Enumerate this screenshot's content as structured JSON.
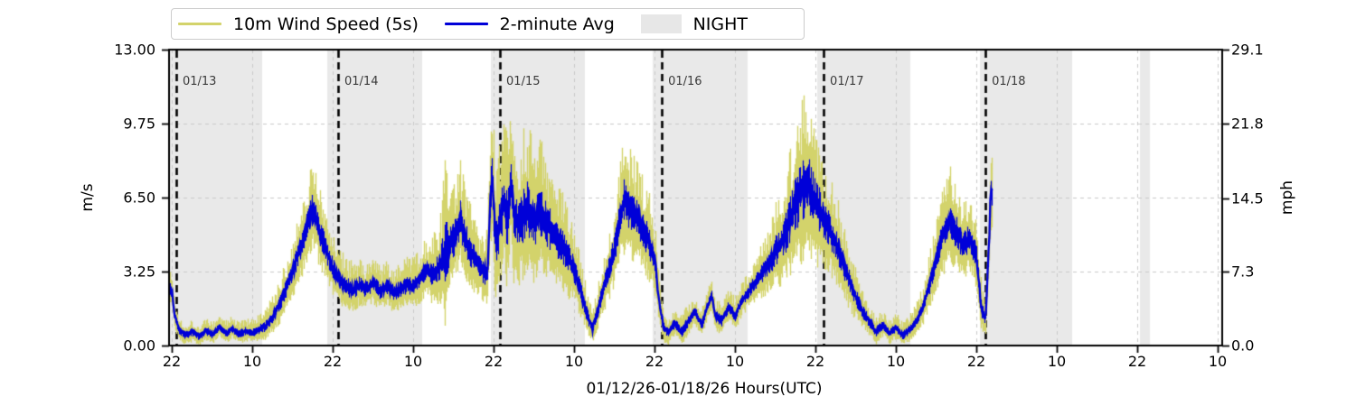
{
  "legend": {
    "items": [
      {
        "label": "10m Wind Speed (5s)",
        "type": "line",
        "color": "#d3d36b"
      },
      {
        "label": "2-minute Avg",
        "type": "line",
        "color": "#0000d8"
      },
      {
        "label": "NIGHT",
        "type": "patch",
        "color": "#e7e7e7"
      }
    ]
  },
  "axes": {
    "left": {
      "label": "m/s",
      "ticks": [
        "13.00",
        "9.75",
        "6.50",
        "3.25",
        "0.00"
      ],
      "values": [
        13,
        9.75,
        6.5,
        3.25,
        0
      ]
    },
    "right": {
      "label": "mph",
      "ticks": [
        "29.1",
        "21.8",
        "14.5",
        "7.3",
        "0.0"
      ],
      "values": [
        29.1,
        21.8,
        14.5,
        7.3,
        0
      ]
    },
    "x": {
      "label": "01/12/26-01/18/26  Hours(UTC)",
      "ticks": [
        "22",
        "10",
        "22",
        "10",
        "22",
        "10",
        "22",
        "10",
        "22",
        "10",
        "22",
        "10",
        "22",
        "10"
      ],
      "tick_hours": [
        0,
        12,
        24,
        36,
        48,
        60,
        72,
        84,
        96,
        108,
        120,
        132,
        144,
        156
      ]
    }
  },
  "colors": {
    "wind": "#d3d36b",
    "avg": "#0000d8",
    "night": "#e9e9e9",
    "grid": "#c9c9c9",
    "day_line": "#000000",
    "spine": "#000000"
  },
  "chart_data": {
    "type": "line",
    "title": "",
    "xlabel": "01/12/26-01/18/26  Hours(UTC)",
    "ylabel_left": "m/s",
    "ylabel_right": "mph",
    "x_unit_note": "hours after 01/12 22:00 UTC",
    "ylim_ms": [
      0,
      13
    ],
    "ylim_mph": [
      0,
      29.1
    ],
    "grid": true,
    "legend_position": "top",
    "data_start_hour": -0.45,
    "data_end_hour": 122.3,
    "day_markers": [
      {
        "label": "01/13",
        "t": 0.674
      },
      {
        "label": "01/14",
        "t": 24.81
      },
      {
        "label": "01/15",
        "t": 48.95
      },
      {
        "label": "01/16",
        "t": 73.09
      },
      {
        "label": "01/17",
        "t": 97.22
      },
      {
        "label": "01/18",
        "t": 121.36
      }
    ],
    "night_bands_hours": [
      [
        -0.45,
        13.48
      ],
      [
        23.19,
        37.35
      ],
      [
        47.6,
        61.62
      ],
      [
        71.73,
        85.89
      ],
      [
        96.27,
        110.16
      ],
      [
        120.54,
        134.29
      ],
      [
        144.41,
        145.9
      ]
    ],
    "series": [
      {
        "name": "2-minute Avg",
        "color": "#0000d8",
        "avg_anchors": [
          [
            -0.45,
            2.6
          ],
          [
            0,
            2.3
          ],
          [
            0.4,
            1.3
          ],
          [
            1,
            0.7
          ],
          [
            2,
            0.45
          ],
          [
            3,
            0.6
          ],
          [
            4,
            0.4
          ],
          [
            5,
            0.65
          ],
          [
            6,
            0.5
          ],
          [
            7,
            0.8
          ],
          [
            8,
            0.55
          ],
          [
            9,
            0.75
          ],
          [
            10,
            0.5
          ],
          [
            11,
            0.65
          ],
          [
            12,
            0.55
          ],
          [
            13,
            0.7
          ],
          [
            14,
            0.9
          ],
          [
            15,
            1.3
          ],
          [
            16,
            1.8
          ],
          [
            17,
            2.5
          ],
          [
            18,
            3.3
          ],
          [
            19,
            4.2
          ],
          [
            20,
            5.1
          ],
          [
            21,
            6.1
          ],
          [
            21.5,
            5.6
          ],
          [
            22,
            5.0
          ],
          [
            23,
            4.2
          ],
          [
            24,
            3.4
          ],
          [
            25,
            2.9
          ],
          [
            26,
            2.6
          ],
          [
            27,
            2.45
          ],
          [
            28,
            2.7
          ],
          [
            29,
            2.5
          ],
          [
            30,
            2.75
          ],
          [
            31,
            2.4
          ],
          [
            32,
            2.6
          ],
          [
            33,
            2.35
          ],
          [
            34,
            2.5
          ],
          [
            35,
            2.7
          ],
          [
            36,
            2.6
          ],
          [
            37,
            2.95
          ],
          [
            38,
            3.35
          ],
          [
            39,
            3.1
          ],
          [
            40,
            3.6
          ],
          [
            41,
            4.3
          ],
          [
            42,
            4.8
          ],
          [
            43,
            5.6
          ],
          [
            43.5,
            5.0
          ],
          [
            44,
            4.5
          ],
          [
            45,
            3.9
          ],
          [
            46,
            3.4
          ],
          [
            47,
            3.1
          ],
          [
            47.7,
            7.9
          ],
          [
            48.2,
            4.6
          ],
          [
            49,
            5.6
          ],
          [
            49.5,
            6.3
          ],
          [
            50,
            5.5
          ],
          [
            50.5,
            7.6
          ],
          [
            51,
            5.4
          ],
          [
            52,
            5.6
          ],
          [
            53,
            6.1
          ],
          [
            54,
            5.5
          ],
          [
            55,
            5.9
          ],
          [
            56,
            5.3
          ],
          [
            57,
            4.9
          ],
          [
            58,
            4.5
          ],
          [
            59,
            3.9
          ],
          [
            60,
            3.3
          ],
          [
            61,
            2.3
          ],
          [
            62,
            1.3
          ],
          [
            62.7,
            0.75
          ],
          [
            63.5,
            1.6
          ],
          [
            64,
            2.2
          ],
          [
            65,
            3.2
          ],
          [
            66,
            4.3
          ],
          [
            67,
            5.9
          ],
          [
            67.5,
            6.5
          ],
          [
            68,
            6.1
          ],
          [
            69,
            5.8
          ],
          [
            70,
            5.3
          ],
          [
            71,
            4.7
          ],
          [
            72,
            3.7
          ],
          [
            72.7,
            1.8
          ],
          [
            73.3,
            0.8
          ],
          [
            74,
            0.6
          ],
          [
            75,
            1.0
          ],
          [
            76,
            0.6
          ],
          [
            77,
            1.1
          ],
          [
            78,
            1.5
          ],
          [
            79,
            0.9
          ],
          [
            80,
            1.9
          ],
          [
            80.5,
            2.2
          ],
          [
            81,
            1.3
          ],
          [
            82,
            1.1
          ],
          [
            83,
            1.7
          ],
          [
            84,
            1.3
          ],
          [
            85,
            2.0
          ],
          [
            86,
            2.4
          ],
          [
            87,
            2.8
          ],
          [
            88,
            3.2
          ],
          [
            89,
            3.6
          ],
          [
            90,
            4.2
          ],
          [
            91,
            4.6
          ],
          [
            92,
            5.4
          ],
          [
            93,
            6.3
          ],
          [
            94,
            7.0
          ],
          [
            95,
            7.2
          ],
          [
            95.5,
            6.6
          ],
          [
            96,
            6.3
          ],
          [
            97,
            5.7
          ],
          [
            98,
            5.1
          ],
          [
            99,
            4.5
          ],
          [
            100,
            3.7
          ],
          [
            101,
            2.9
          ],
          [
            102,
            2.1
          ],
          [
            103,
            1.5
          ],
          [
            104,
            1.05
          ],
          [
            105,
            0.6
          ],
          [
            106,
            0.9
          ],
          [
            107,
            0.55
          ],
          [
            108,
            0.8
          ],
          [
            109,
            0.45
          ],
          [
            110,
            0.7
          ],
          [
            111,
            1.05
          ],
          [
            112,
            1.7
          ],
          [
            113,
            2.7
          ],
          [
            114,
            3.9
          ],
          [
            115,
            4.9
          ],
          [
            116,
            5.5
          ],
          [
            117,
            5.0
          ],
          [
            118,
            4.4
          ],
          [
            119,
            4.8
          ],
          [
            120,
            3.9
          ],
          [
            120.7,
            1.6
          ],
          [
            121.3,
            1.2
          ],
          [
            121.8,
            4.2
          ],
          [
            122.1,
            6.9
          ],
          [
            122.3,
            6.5
          ]
        ]
      },
      {
        "name": "10m Wind Speed (5s)",
        "color": "#d3d36b",
        "gust_extra_anchors": [
          [
            -0.45,
            0.9
          ],
          [
            0,
            0.8
          ],
          [
            1,
            0.6
          ],
          [
            4,
            0.55
          ],
          [
            8,
            0.6
          ],
          [
            12,
            0.6
          ],
          [
            14,
            0.8
          ],
          [
            16,
            1.1
          ],
          [
            18,
            1.5
          ],
          [
            20,
            2.1
          ],
          [
            21,
            2.3
          ],
          [
            22,
            2.0
          ],
          [
            24,
            1.5
          ],
          [
            28,
            1.2
          ],
          [
            32,
            1.1
          ],
          [
            36,
            1.3
          ],
          [
            38,
            1.5
          ],
          [
            40,
            2.2
          ],
          [
            40.9,
            4.6
          ],
          [
            41.5,
            2.6
          ],
          [
            42,
            2.8
          ],
          [
            43,
            2.7
          ],
          [
            44,
            2.3
          ],
          [
            46,
            1.7
          ],
          [
            47,
            2.2
          ],
          [
            47.8,
            3.7
          ],
          [
            49,
            3.4
          ],
          [
            50,
            3.9
          ],
          [
            51,
            3.5
          ],
          [
            52,
            3.7
          ],
          [
            53,
            4.0
          ],
          [
            54,
            3.5
          ],
          [
            55,
            3.3
          ],
          [
            56,
            3.1
          ],
          [
            57,
            2.7
          ],
          [
            58,
            2.5
          ],
          [
            59,
            2.3
          ],
          [
            60,
            1.9
          ],
          [
            62,
            1.1
          ],
          [
            62.7,
            0.8
          ],
          [
            64,
            1.3
          ],
          [
            65,
            1.7
          ],
          [
            66,
            2.1
          ],
          [
            67,
            2.7
          ],
          [
            67.5,
            3.1
          ],
          [
            68,
            2.9
          ],
          [
            69,
            2.7
          ],
          [
            70,
            2.5
          ],
          [
            71,
            2.3
          ],
          [
            72,
            1.9
          ],
          [
            73.3,
            0.8
          ],
          [
            75,
            0.7
          ],
          [
            77,
            0.8
          ],
          [
            79,
            0.7
          ],
          [
            81,
            0.8
          ],
          [
            83,
            0.8
          ],
          [
            85,
            0.9
          ],
          [
            87,
            1.1
          ],
          [
            88,
            1.4
          ],
          [
            89,
            1.7
          ],
          [
            90,
            2.1
          ],
          [
            91,
            2.5
          ],
          [
            92,
            3.1
          ],
          [
            93,
            3.9
          ],
          [
            94,
            4.4
          ],
          [
            95,
            4.2
          ],
          [
            96,
            3.6
          ],
          [
            97,
            3.0
          ],
          [
            98,
            2.6
          ],
          [
            99,
            2.3
          ],
          [
            100,
            2.0
          ],
          [
            101,
            1.7
          ],
          [
            102,
            1.3
          ],
          [
            103,
            1.0
          ],
          [
            104,
            0.8
          ],
          [
            106,
            0.65
          ],
          [
            108,
            0.65
          ],
          [
            110,
            0.65
          ],
          [
            112,
            1.0
          ],
          [
            113,
            1.4
          ],
          [
            114,
            1.9
          ],
          [
            115,
            2.3
          ],
          [
            116,
            2.5
          ],
          [
            117,
            2.3
          ],
          [
            118,
            2.0
          ],
          [
            119,
            2.1
          ],
          [
            120,
            1.9
          ],
          [
            121,
            1.1
          ],
          [
            121.8,
            1.9
          ],
          [
            122.1,
            2.4
          ],
          [
            122.3,
            2.2
          ]
        ]
      }
    ]
  }
}
